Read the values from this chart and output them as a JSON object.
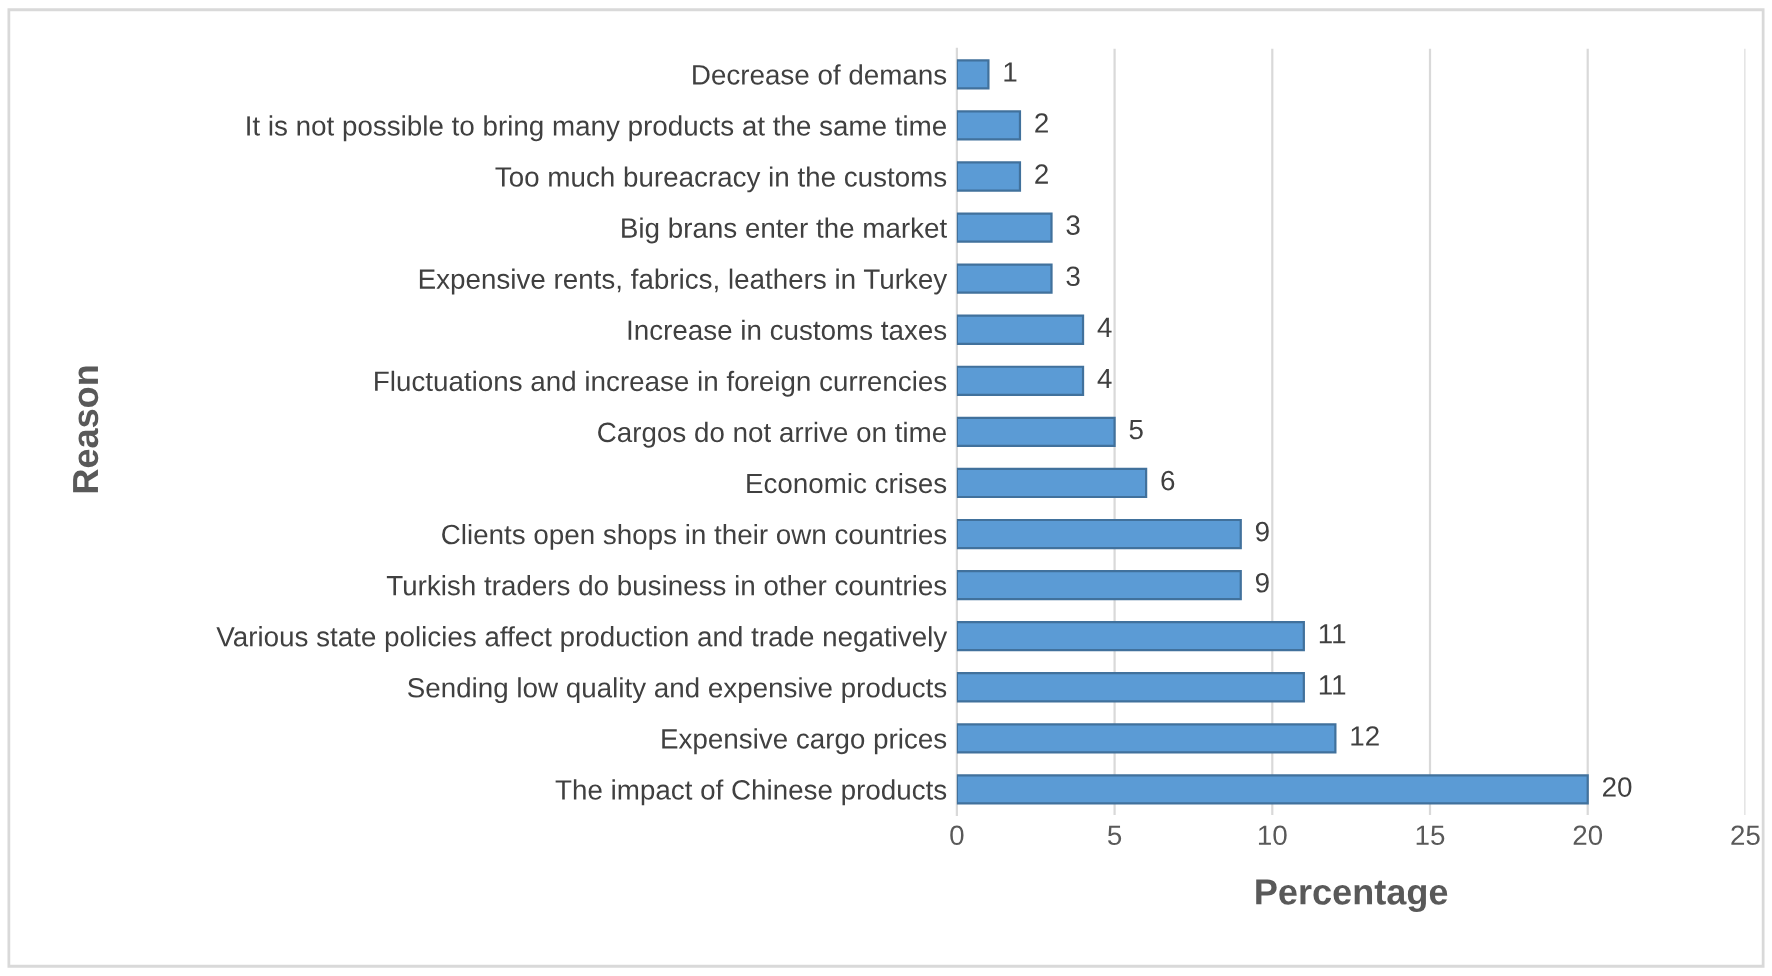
{
  "chart_data": {
    "type": "bar",
    "orientation": "horizontal",
    "xlabel": "Percentage",
    "ylabel": "Reason",
    "categories": [
      "Decrease of demans",
      "It is not possible to bring many products at the same time",
      "Too much bureacracy in the customs",
      "Big brans enter the market",
      "Expensive rents, fabrics, leathers in Turkey",
      "Increase in customs taxes",
      "Fluctuations and increase in foreign currencies",
      "Cargos do not arrive on time",
      "Economic crises",
      "Clients open shops in their own countries",
      "Turkish traders do business in other countries",
      "Various state policies affect production and trade negatively",
      "Sending low quality and expensive products",
      "Expensive cargo prices",
      "The impact of Chinese products"
    ],
    "values": [
      1,
      2,
      2,
      3,
      3,
      4,
      4,
      5,
      6,
      9,
      9,
      11,
      11,
      12,
      20
    ],
    "color": "#5b9bd5",
    "xlim": [
      0,
      25
    ],
    "xticks": [
      0,
      5,
      10,
      15,
      20,
      25
    ],
    "grid": "x",
    "data_labels": true,
    "legend": false
  }
}
